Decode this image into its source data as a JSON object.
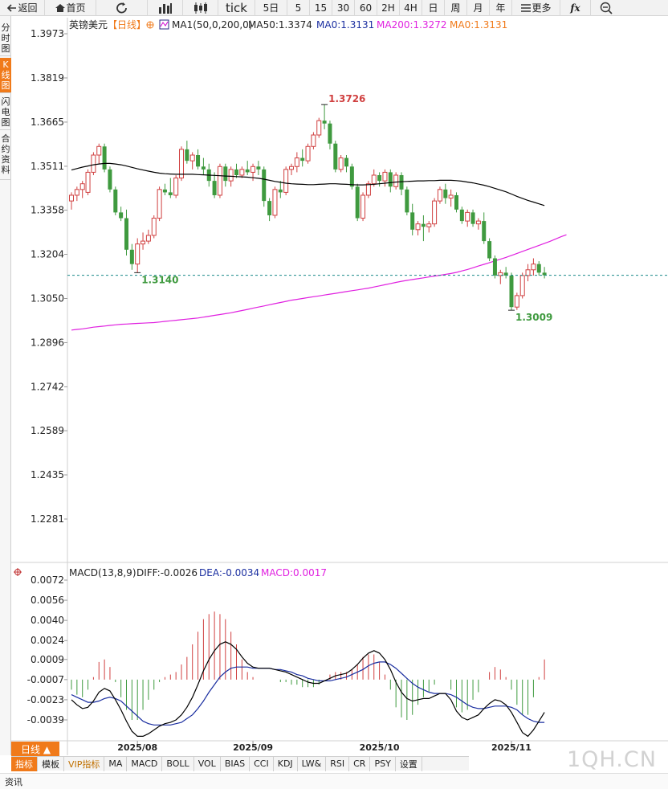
{
  "toolbar": {
    "back": "返回",
    "home": "首页",
    "tick": "tick",
    "d5": "5日",
    "m5": "5",
    "m15": "15",
    "m30": "30",
    "m60": "60",
    "h2": "2H",
    "h4": "4H",
    "day": "日",
    "week": "周",
    "month": "月",
    "year": "年",
    "more": "更多",
    "fx": "fx"
  },
  "left_tabs": [
    "分时图",
    "K线图",
    "闪电图",
    "合约资料"
  ],
  "header": {
    "instrument": "英镑美元",
    "period": "【日线】",
    "ma_title": "MA1(50,0,200,0)",
    "ma50": "MA50:1.3374",
    "ma0a": "MA0:1.3131",
    "ma200": "MA200:1.3272",
    "ma0b": "MA0:1.3131"
  },
  "macd_header": {
    "title": "MACD(13,8,9)",
    "diff": "DIFF:-0.0026",
    "dea": "DEA:-0.0034",
    "macd": "MACD:0.0017"
  },
  "period_button": "日线 ▲",
  "bottom_tabs": [
    "指标",
    "模板",
    "VIP指标",
    "MA",
    "MACD",
    "BOLL",
    "VOL",
    "BIAS",
    "CCI",
    "KDJ",
    "LW&",
    "RSI",
    "CR",
    "PSY",
    "设置"
  ],
  "status": "资讯",
  "watermark": "1QH.CN",
  "colors": {
    "up": "#d04040",
    "down": "#3f9a3f",
    "ma50": "#000000",
    "ma200": "#e020e0",
    "diff": "#000000",
    "dea": "#1a2ea0",
    "macd": "#e020e0",
    "last_price_line": "#1a8a8a",
    "accent": "#f07a1a"
  },
  "chart_data": [
    {
      "type": "candlestick",
      "title": "英镑美元",
      "y_ticks": [
        "1.3973",
        "1.3819",
        "1.3665",
        "1.3511",
        "1.3358",
        "1.3204",
        "1.3050",
        "1.2896",
        "1.2742",
        "1.2589",
        "1.2435",
        "1.2281"
      ],
      "ylim": [
        1.2281,
        1.3973
      ],
      "x_labels": [
        "2025/08",
        "2025/09",
        "2025/10",
        "2025/11"
      ],
      "annotations": [
        {
          "text": "1.3726",
          "value": 1.3726,
          "kind": "high"
        },
        {
          "text": "1.3140",
          "value": 1.314,
          "kind": "low"
        },
        {
          "text": "1.3009",
          "value": 1.3009,
          "kind": "low"
        }
      ],
      "last_price": 1.3131,
      "candles": [
        {
          "o": 1.339,
          "h": 1.342,
          "l": 1.336,
          "c": 1.341
        },
        {
          "o": 1.341,
          "h": 1.344,
          "l": 1.339,
          "c": 1.343
        },
        {
          "o": 1.343,
          "h": 1.346,
          "l": 1.34,
          "c": 1.345
        },
        {
          "o": 1.342,
          "h": 1.35,
          "l": 1.341,
          "c": 1.349
        },
        {
          "o": 1.349,
          "h": 1.356,
          "l": 1.348,
          "c": 1.355
        },
        {
          "o": 1.355,
          "h": 1.359,
          "l": 1.352,
          "c": 1.358
        },
        {
          "o": 1.358,
          "h": 1.359,
          "l": 1.349,
          "c": 1.35
        },
        {
          "o": 1.35,
          "h": 1.351,
          "l": 1.342,
          "c": 1.343
        },
        {
          "o": 1.343,
          "h": 1.344,
          "l": 1.334,
          "c": 1.335
        },
        {
          "o": 1.335,
          "h": 1.337,
          "l": 1.332,
          "c": 1.333
        },
        {
          "o": 1.333,
          "h": 1.336,
          "l": 1.32,
          "c": 1.322
        },
        {
          "o": 1.322,
          "h": 1.324,
          "l": 1.315,
          "c": 1.317
        },
        {
          "o": 1.317,
          "h": 1.326,
          "l": 1.314,
          "c": 1.324
        },
        {
          "o": 1.324,
          "h": 1.328,
          "l": 1.322,
          "c": 1.325
        },
        {
          "o": 1.325,
          "h": 1.329,
          "l": 1.324,
          "c": 1.327
        },
        {
          "o": 1.327,
          "h": 1.334,
          "l": 1.326,
          "c": 1.333
        },
        {
          "o": 1.333,
          "h": 1.344,
          "l": 1.332,
          "c": 1.343
        },
        {
          "o": 1.343,
          "h": 1.345,
          "l": 1.341,
          "c": 1.342
        },
        {
          "o": 1.342,
          "h": 1.347,
          "l": 1.34,
          "c": 1.341
        },
        {
          "o": 1.341,
          "h": 1.348,
          "l": 1.34,
          "c": 1.347
        },
        {
          "o": 1.347,
          "h": 1.358,
          "l": 1.346,
          "c": 1.357
        },
        {
          "o": 1.357,
          "h": 1.36,
          "l": 1.352,
          "c": 1.353
        },
        {
          "o": 1.353,
          "h": 1.356,
          "l": 1.35,
          "c": 1.355
        },
        {
          "o": 1.355,
          "h": 1.357,
          "l": 1.35,
          "c": 1.351
        },
        {
          "o": 1.351,
          "h": 1.354,
          "l": 1.348,
          "c": 1.35
        },
        {
          "o": 1.35,
          "h": 1.352,
          "l": 1.344,
          "c": 1.346
        },
        {
          "o": 1.346,
          "h": 1.349,
          "l": 1.34,
          "c": 1.341
        },
        {
          "o": 1.341,
          "h": 1.352,
          "l": 1.34,
          "c": 1.351
        },
        {
          "o": 1.351,
          "h": 1.352,
          "l": 1.344,
          "c": 1.346
        },
        {
          "o": 1.346,
          "h": 1.351,
          "l": 1.344,
          "c": 1.35
        },
        {
          "o": 1.35,
          "h": 1.352,
          "l": 1.347,
          "c": 1.348
        },
        {
          "o": 1.348,
          "h": 1.351,
          "l": 1.347,
          "c": 1.35
        },
        {
          "o": 1.35,
          "h": 1.353,
          "l": 1.348,
          "c": 1.349
        },
        {
          "o": 1.349,
          "h": 1.352,
          "l": 1.346,
          "c": 1.351
        },
        {
          "o": 1.351,
          "h": 1.353,
          "l": 1.348,
          "c": 1.35
        },
        {
          "o": 1.35,
          "h": 1.351,
          "l": 1.337,
          "c": 1.339
        },
        {
          "o": 1.339,
          "h": 1.34,
          "l": 1.332,
          "c": 1.334
        },
        {
          "o": 1.334,
          "h": 1.344,
          "l": 1.333,
          "c": 1.343
        },
        {
          "o": 1.343,
          "h": 1.346,
          "l": 1.34,
          "c": 1.342
        },
        {
          "o": 1.342,
          "h": 1.351,
          "l": 1.341,
          "c": 1.35
        },
        {
          "o": 1.35,
          "h": 1.352,
          "l": 1.348,
          "c": 1.351
        },
        {
          "o": 1.351,
          "h": 1.356,
          "l": 1.349,
          "c": 1.354
        },
        {
          "o": 1.354,
          "h": 1.357,
          "l": 1.351,
          "c": 1.353
        },
        {
          "o": 1.353,
          "h": 1.359,
          "l": 1.352,
          "c": 1.358
        },
        {
          "o": 1.358,
          "h": 1.363,
          "l": 1.357,
          "c": 1.362
        },
        {
          "o": 1.362,
          "h": 1.368,
          "l": 1.361,
          "c": 1.367
        },
        {
          "o": 1.367,
          "h": 1.3726,
          "l": 1.364,
          "c": 1.366
        },
        {
          "o": 1.366,
          "h": 1.367,
          "l": 1.357,
          "c": 1.359
        },
        {
          "o": 1.359,
          "h": 1.36,
          "l": 1.349,
          "c": 1.35
        },
        {
          "o": 1.35,
          "h": 1.355,
          "l": 1.349,
          "c": 1.354
        },
        {
          "o": 1.354,
          "h": 1.355,
          "l": 1.349,
          "c": 1.351
        },
        {
          "o": 1.351,
          "h": 1.352,
          "l": 1.343,
          "c": 1.344
        },
        {
          "o": 1.344,
          "h": 1.345,
          "l": 1.332,
          "c": 1.333
        },
        {
          "o": 1.333,
          "h": 1.342,
          "l": 1.332,
          "c": 1.341
        },
        {
          "o": 1.341,
          "h": 1.346,
          "l": 1.34,
          "c": 1.345
        },
        {
          "o": 1.345,
          "h": 1.35,
          "l": 1.344,
          "c": 1.348
        },
        {
          "o": 1.348,
          "h": 1.349,
          "l": 1.344,
          "c": 1.346
        },
        {
          "o": 1.346,
          "h": 1.35,
          "l": 1.344,
          "c": 1.349
        },
        {
          "o": 1.349,
          "h": 1.35,
          "l": 1.342,
          "c": 1.344
        },
        {
          "o": 1.344,
          "h": 1.349,
          "l": 1.343,
          "c": 1.348
        },
        {
          "o": 1.348,
          "h": 1.349,
          "l": 1.341,
          "c": 1.343
        },
        {
          "o": 1.343,
          "h": 1.344,
          "l": 1.334,
          "c": 1.335
        },
        {
          "o": 1.335,
          "h": 1.338,
          "l": 1.327,
          "c": 1.329
        },
        {
          "o": 1.329,
          "h": 1.332,
          "l": 1.327,
          "c": 1.331
        },
        {
          "o": 1.331,
          "h": 1.334,
          "l": 1.325,
          "c": 1.33
        },
        {
          "o": 1.33,
          "h": 1.332,
          "l": 1.328,
          "c": 1.331
        },
        {
          "o": 1.331,
          "h": 1.34,
          "l": 1.33,
          "c": 1.339
        },
        {
          "o": 1.339,
          "h": 1.344,
          "l": 1.338,
          "c": 1.343
        },
        {
          "o": 1.343,
          "h": 1.345,
          "l": 1.338,
          "c": 1.34
        },
        {
          "o": 1.34,
          "h": 1.343,
          "l": 1.337,
          "c": 1.341
        },
        {
          "o": 1.341,
          "h": 1.342,
          "l": 1.335,
          "c": 1.336
        },
        {
          "o": 1.336,
          "h": 1.337,
          "l": 1.331,
          "c": 1.332
        },
        {
          "o": 1.332,
          "h": 1.336,
          "l": 1.33,
          "c": 1.335
        },
        {
          "o": 1.335,
          "h": 1.336,
          "l": 1.33,
          "c": 1.331
        },
        {
          "o": 1.331,
          "h": 1.333,
          "l": 1.329,
          "c": 1.332
        },
        {
          "o": 1.332,
          "h": 1.335,
          "l": 1.324,
          "c": 1.325
        },
        {
          "o": 1.325,
          "h": 1.326,
          "l": 1.318,
          "c": 1.319
        },
        {
          "o": 1.319,
          "h": 1.32,
          "l": 1.312,
          "c": 1.313
        },
        {
          "o": 1.313,
          "h": 1.315,
          "l": 1.31,
          "c": 1.314
        },
        {
          "o": 1.314,
          "h": 1.316,
          "l": 1.312,
          "c": 1.313
        },
        {
          "o": 1.313,
          "h": 1.314,
          "l": 1.3009,
          "c": 1.302
        },
        {
          "o": 1.302,
          "h": 1.307,
          "l": 1.301,
          "c": 1.306
        },
        {
          "o": 1.306,
          "h": 1.314,
          "l": 1.305,
          "c": 1.313
        },
        {
          "o": 1.313,
          "h": 1.317,
          "l": 1.311,
          "c": 1.315
        },
        {
          "o": 1.315,
          "h": 1.319,
          "l": 1.313,
          "c": 1.317
        },
        {
          "o": 1.317,
          "h": 1.318,
          "l": 1.313,
          "c": 1.314
        },
        {
          "o": 1.314,
          "h": 1.316,
          "l": 1.312,
          "c": 1.3131
        }
      ],
      "ma50": [
        1.3498,
        1.3503,
        1.3508,
        1.3512,
        1.3516,
        1.3519,
        1.3521,
        1.3521,
        1.3519,
        1.3516,
        1.3512,
        1.3507,
        1.3502,
        1.3498,
        1.3494,
        1.349,
        1.3487,
        1.3485,
        1.3484,
        1.3483,
        1.3483,
        1.3483,
        1.3483,
        1.3482,
        1.3481,
        1.348,
        1.3479,
        1.3478,
        1.3477,
        1.3476,
        1.3475,
        1.3474,
        1.3473,
        1.3471,
        1.3469,
        1.3466,
        1.3462,
        1.3458,
        1.3455,
        1.3452,
        1.345,
        1.3449,
        1.3448,
        1.3447,
        1.3447,
        1.3448,
        1.3449,
        1.345,
        1.345,
        1.3449,
        1.3448,
        1.3447,
        1.3446,
        1.3446,
        1.3447,
        1.3448,
        1.345,
        1.3452,
        1.3454,
        1.3456,
        1.3457,
        1.3458,
        1.3459,
        1.346,
        1.346,
        1.3461,
        1.3461,
        1.3462,
        1.3462,
        1.3462,
        1.3461,
        1.3459,
        1.3456,
        1.3453,
        1.3449,
        1.3445,
        1.344,
        1.3434,
        1.3428,
        1.3422,
        1.3414,
        1.3406,
        1.3399,
        1.3392,
        1.3386,
        1.338,
        1.3374
      ],
      "ma200": [
        1.294,
        1.2942,
        1.2944,
        1.2947,
        1.295,
        1.2952,
        1.2954,
        1.2956,
        1.2958,
        1.296,
        1.2961,
        1.2962,
        1.2963,
        1.2964,
        1.2965,
        1.2966,
        1.2968,
        1.297,
        1.2972,
        1.2974,
        1.2976,
        1.2978,
        1.298,
        1.2982,
        1.2985,
        1.2988,
        1.2991,
        1.2994,
        1.2997,
        1.3,
        1.3004,
        1.3008,
        1.3012,
        1.3016,
        1.302,
        1.3024,
        1.3028,
        1.3032,
        1.3036,
        1.304,
        1.3044,
        1.3047,
        1.305,
        1.3053,
        1.3056,
        1.3059,
        1.3062,
        1.3065,
        1.3068,
        1.3071,
        1.3074,
        1.3077,
        1.308,
        1.3083,
        1.3086,
        1.309,
        1.3094,
        1.3098,
        1.3102,
        1.3106,
        1.311,
        1.3113,
        1.3116,
        1.3119,
        1.3122,
        1.3125,
        1.3128,
        1.3131,
        1.3134,
        1.3137,
        1.3141,
        1.3146,
        1.3151,
        1.3157,
        1.3163,
        1.3169,
        1.3175,
        1.3181,
        1.3187,
        1.3193,
        1.32,
        1.3207,
        1.3214,
        1.3221,
        1.3228,
        1.3235,
        1.3242,
        1.3249,
        1.3257,
        1.3265,
        1.3272
      ]
    },
    {
      "type": "macd",
      "title": "MACD(13,8,9)",
      "y_ticks": [
        "0.0072",
        "0.0056",
        "0.0040",
        "0.0024",
        "0.0009",
        "-0.0007",
        "-0.0023",
        "-0.0039"
      ],
      "ylim": [
        -0.005,
        0.0078
      ],
      "diff": [
        -0.0016,
        -0.002,
        -0.0023,
        -0.0022,
        -0.0017,
        -0.001,
        -0.0007,
        -0.0009,
        -0.0016,
        -0.0024,
        -0.0033,
        -0.0041,
        -0.0045,
        -0.0045,
        -0.0043,
        -0.004,
        -0.0037,
        -0.0035,
        -0.0034,
        -0.0032,
        -0.0028,
        -0.0022,
        -0.0014,
        -0.0004,
        0.0007,
        0.0016,
        0.0023,
        0.0028,
        0.003,
        0.0028,
        0.0024,
        0.0018,
        0.0013,
        0.001,
        0.0009,
        0.0009,
        0.0009,
        0.0008,
        0.0007,
        0.0006,
        0.0004,
        0.0002,
        0.0,
        -0.0002,
        -0.0003,
        -0.0003,
        -0.0001,
        0.0001,
        0.0003,
        0.0004,
        0.0005,
        0.0008,
        0.0012,
        0.0017,
        0.0021,
        0.0023,
        0.0021,
        0.0016,
        0.0008,
        -0.0002,
        -0.001,
        -0.0015,
        -0.0017,
        -0.0016,
        -0.0015,
        -0.0015,
        -0.0013,
        -0.0011,
        -0.0011,
        -0.0016,
        -0.0025,
        -0.003,
        -0.0032,
        -0.003,
        -0.0028,
        -0.0023,
        -0.0019,
        -0.0016,
        -0.0017,
        -0.002,
        -0.0026,
        -0.0034,
        -0.0042,
        -0.0045,
        -0.004,
        -0.0033,
        -0.0026
      ],
      "dea": [
        -0.0012,
        -0.0014,
        -0.0016,
        -0.0018,
        -0.0018,
        -0.0017,
        -0.0015,
        -0.0014,
        -0.0015,
        -0.0017,
        -0.0021,
        -0.0025,
        -0.0029,
        -0.0033,
        -0.0035,
        -0.0036,
        -0.0036,
        -0.0036,
        -0.0036,
        -0.0035,
        -0.0034,
        -0.0031,
        -0.0028,
        -0.0023,
        -0.0017,
        -0.001,
        -0.0004,
        0.0002,
        0.0006,
        0.0009,
        0.001,
        0.001,
        0.001,
        0.0009,
        0.0009,
        0.0009,
        0.0009,
        0.0008,
        0.0008,
        0.0007,
        0.0006,
        0.0004,
        0.0003,
        0.0001,
        0.0,
        -0.0001,
        -0.0001,
        -0.0001,
        0.0,
        0.0001,
        0.0002,
        0.0004,
        0.0006,
        0.0008,
        0.0011,
        0.0013,
        0.0014,
        0.0014,
        0.0012,
        0.0009,
        0.0005,
        0.0001,
        -0.0003,
        -0.0006,
        -0.0008,
        -0.001,
        -0.0011,
        -0.0011,
        -0.0011,
        -0.0012,
        -0.0014,
        -0.0017,
        -0.002,
        -0.0022,
        -0.0023,
        -0.0023,
        -0.0022,
        -0.0021,
        -0.0021,
        -0.0021,
        -0.0022,
        -0.0024,
        -0.0028,
        -0.0031,
        -0.0033,
        -0.0034,
        -0.0034
      ]
    }
  ]
}
